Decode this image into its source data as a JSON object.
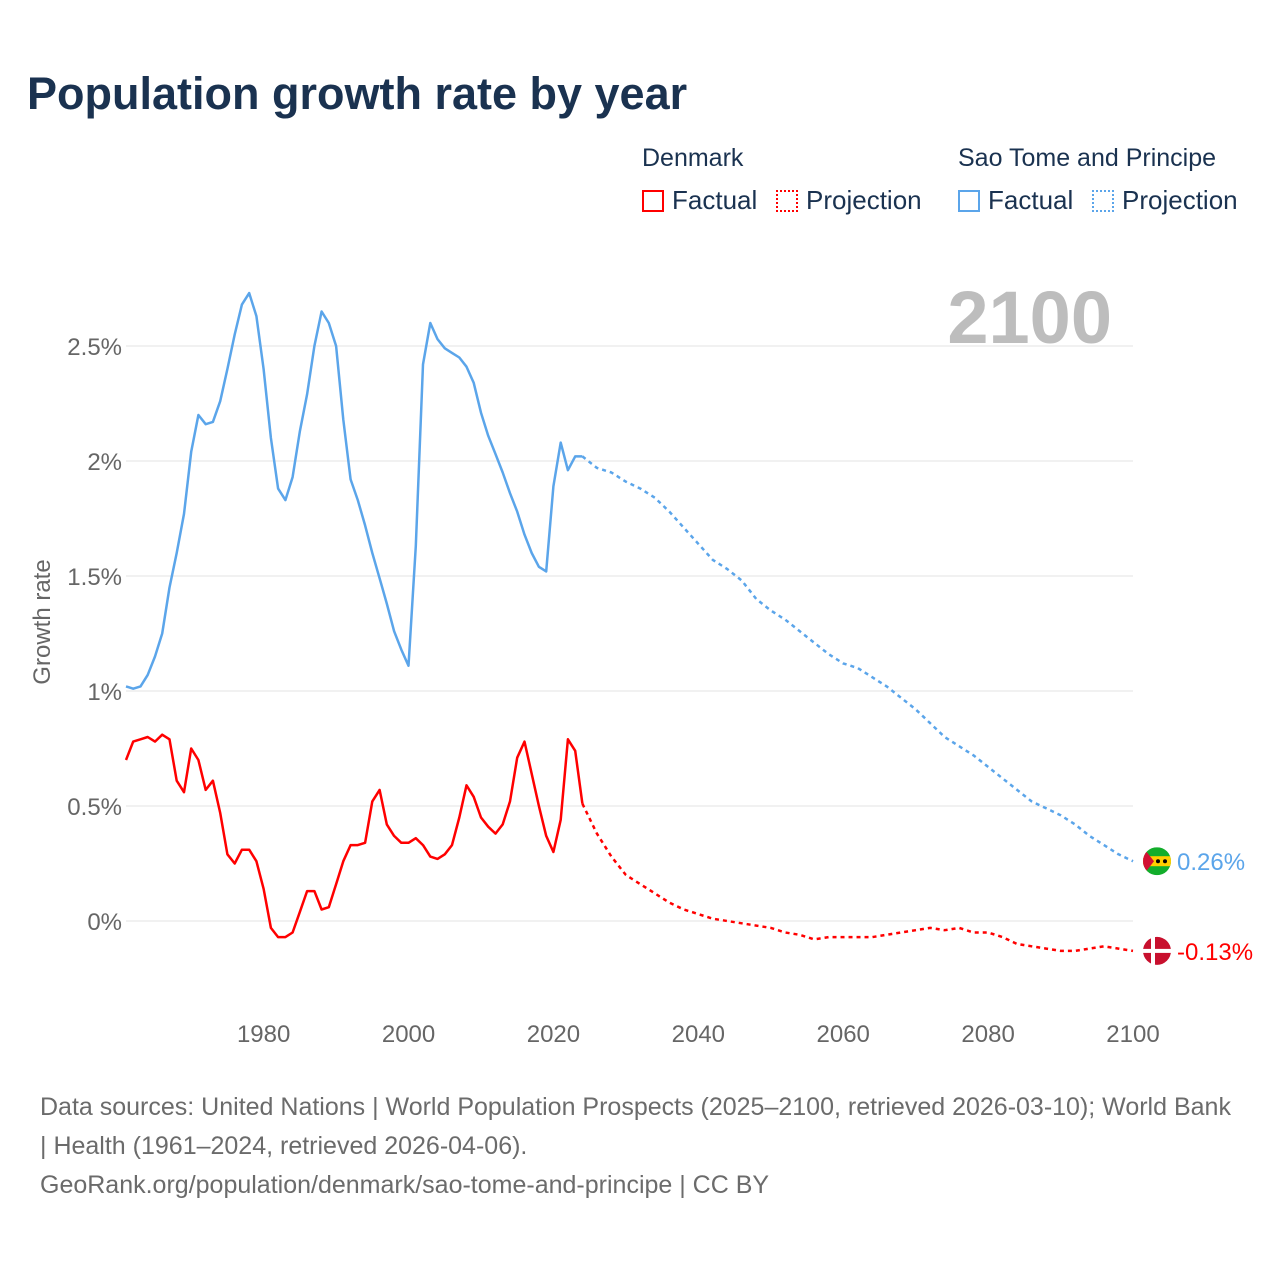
{
  "title": "Population growth rate by year",
  "legend": [
    {
      "group": "Denmark",
      "color": "#ff0000",
      "factual": "Factual",
      "projection": "Projection"
    },
    {
      "group": "Sao Tome and Principe",
      "color": "#5ba5ea",
      "factual": "Factual",
      "projection": "Projection"
    }
  ],
  "year_label": "2100",
  "footer": {
    "sources": "Data sources: United Nations | World Population Prospects (2025–2100, retrieved 2026-03-10); World Bank | Health (1961–2024, retrieved 2026-04-06).",
    "link": "GeoRank.org/population/denmark/sao-tome-and-principe | CC BY"
  },
  "chart_data": {
    "type": "line",
    "title": "Population growth rate by year",
    "xlabel": "",
    "ylabel": "Growth rate",
    "xlim": [
      1961,
      2100
    ],
    "ylim": [
      -0.2,
      2.8
    ],
    "grid": true,
    "x_ticks": [
      1980,
      2000,
      2020,
      2040,
      2060,
      2080,
      2100
    ],
    "x_tick_labels": [
      "1980",
      "2000",
      "2020",
      "2040",
      "2060",
      "2080",
      "2100"
    ],
    "y_ticks": [
      0,
      0.5,
      1,
      1.5,
      2,
      2.5
    ],
    "y_tick_labels": [
      "0%",
      "0.5%",
      "1%",
      "1.5%",
      "2%",
      "2.5%"
    ],
    "legend_position": "top-right",
    "series": [
      {
        "name": "Denmark",
        "kind": "Factual",
        "color": "#ff0000",
        "dashed": false,
        "x": [
          1961,
          1962,
          1963,
          1964,
          1965,
          1966,
          1967,
          1968,
          1969,
          1970,
          1971,
          1972,
          1973,
          1974,
          1975,
          1976,
          1977,
          1978,
          1979,
          1980,
          1981,
          1982,
          1983,
          1984,
          1985,
          1986,
          1987,
          1988,
          1989,
          1990,
          1991,
          1992,
          1993,
          1994,
          1995,
          1996,
          1997,
          1998,
          1999,
          2000,
          2001,
          2002,
          2003,
          2004,
          2005,
          2006,
          2007,
          2008,
          2009,
          2010,
          2011,
          2012,
          2013,
          2014,
          2015,
          2016,
          2017,
          2018,
          2019,
          2020,
          2021,
          2022,
          2023,
          2024
        ],
        "y": [
          0.7,
          0.78,
          0.79,
          0.8,
          0.78,
          0.81,
          0.79,
          0.61,
          0.56,
          0.75,
          0.7,
          0.57,
          0.61,
          0.47,
          0.29,
          0.25,
          0.31,
          0.31,
          0.26,
          0.14,
          -0.03,
          -0.07,
          -0.07,
          -0.05,
          0.04,
          0.13,
          0.13,
          0.05,
          0.06,
          0.16,
          0.26,
          0.33,
          0.33,
          0.34,
          0.52,
          0.57,
          0.42,
          0.37,
          0.34,
          0.34,
          0.36,
          0.33,
          0.28,
          0.27,
          0.29,
          0.33,
          0.45,
          0.59,
          0.54,
          0.45,
          0.41,
          0.38,
          0.42,
          0.52,
          0.71,
          0.78,
          0.64,
          0.5,
          0.37,
          0.3,
          0.44,
          0.79,
          0.74,
          0.51
        ]
      },
      {
        "name": "Denmark",
        "kind": "Projection",
        "color": "#ff0000",
        "dashed": true,
        "x": [
          2024,
          2026,
          2028,
          2030,
          2032,
          2034,
          2036,
          2038,
          2040,
          2042,
          2044,
          2046,
          2048,
          2050,
          2052,
          2054,
          2056,
          2058,
          2060,
          2062,
          2064,
          2066,
          2068,
          2070,
          2072,
          2074,
          2076,
          2078,
          2080,
          2082,
          2084,
          2086,
          2088,
          2090,
          2092,
          2094,
          2096,
          2098,
          2100
        ],
        "y": [
          0.51,
          0.38,
          0.28,
          0.2,
          0.16,
          0.12,
          0.08,
          0.05,
          0.03,
          0.01,
          0.0,
          -0.01,
          -0.02,
          -0.03,
          -0.05,
          -0.06,
          -0.08,
          -0.07,
          -0.07,
          -0.07,
          -0.07,
          -0.06,
          -0.05,
          -0.04,
          -0.03,
          -0.04,
          -0.03,
          -0.05,
          -0.05,
          -0.07,
          -0.1,
          -0.11,
          -0.12,
          -0.13,
          -0.13,
          -0.12,
          -0.11,
          -0.12,
          -0.13
        ]
      },
      {
        "name": "Sao Tome and Principe",
        "kind": "Factual",
        "color": "#5ba5ea",
        "dashed": false,
        "x": [
          1961,
          1962,
          1963,
          1964,
          1965,
          1966,
          1967,
          1968,
          1969,
          1970,
          1971,
          1972,
          1973,
          1974,
          1975,
          1976,
          1977,
          1978,
          1979,
          1980,
          1981,
          1982,
          1983,
          1984,
          1985,
          1986,
          1987,
          1988,
          1989,
          1990,
          1991,
          1992,
          1993,
          1994,
          1995,
          1996,
          1997,
          1998,
          1999,
          2000,
          2001,
          2002,
          2003,
          2004,
          2005,
          2006,
          2007,
          2008,
          2009,
          2010,
          2011,
          2012,
          2013,
          2014,
          2015,
          2016,
          2017,
          2018,
          2019,
          2020,
          2021,
          2022,
          2023,
          2024
        ],
        "y": [
          1.02,
          1.01,
          1.02,
          1.07,
          1.15,
          1.25,
          1.45,
          1.6,
          1.77,
          2.04,
          2.2,
          2.16,
          2.17,
          2.26,
          2.4,
          2.55,
          2.68,
          2.73,
          2.63,
          2.4,
          2.1,
          1.88,
          1.83,
          1.93,
          2.13,
          2.29,
          2.5,
          2.65,
          2.6,
          2.5,
          2.18,
          1.92,
          1.83,
          1.72,
          1.6,
          1.49,
          1.38,
          1.26,
          1.18,
          1.11,
          1.63,
          2.42,
          2.6,
          2.53,
          2.49,
          2.47,
          2.45,
          2.41,
          2.34,
          2.21,
          2.11,
          2.03,
          1.95,
          1.86,
          1.78,
          1.68,
          1.6,
          1.54,
          1.52,
          1.89,
          2.08,
          1.96,
          2.02,
          2.02
        ]
      },
      {
        "name": "Sao Tome and Principe",
        "kind": "Projection",
        "color": "#5ba5ea",
        "dashed": true,
        "x": [
          2024,
          2026,
          2028,
          2030,
          2032,
          2034,
          2036,
          2038,
          2040,
          2042,
          2044,
          2046,
          2048,
          2050,
          2052,
          2054,
          2056,
          2058,
          2060,
          2062,
          2064,
          2066,
          2068,
          2070,
          2072,
          2074,
          2076,
          2078,
          2080,
          2082,
          2084,
          2086,
          2088,
          2090,
          2092,
          2094,
          2096,
          2098,
          2100
        ],
        "y": [
          2.02,
          1.97,
          1.95,
          1.91,
          1.88,
          1.84,
          1.78,
          1.71,
          1.64,
          1.57,
          1.53,
          1.48,
          1.4,
          1.35,
          1.31,
          1.26,
          1.21,
          1.16,
          1.12,
          1.1,
          1.06,
          1.02,
          0.97,
          0.92,
          0.86,
          0.8,
          0.76,
          0.72,
          0.67,
          0.62,
          0.57,
          0.52,
          0.49,
          0.46,
          0.42,
          0.37,
          0.33,
          0.29,
          0.26
        ]
      }
    ],
    "end_labels": [
      {
        "country": "Sao Tome and Principe",
        "value": 0.26,
        "label": "0.26%",
        "color": "#5ba5ea"
      },
      {
        "country": "Denmark",
        "value": -0.13,
        "label": "-0.13%",
        "color": "#ff0000"
      }
    ]
  }
}
